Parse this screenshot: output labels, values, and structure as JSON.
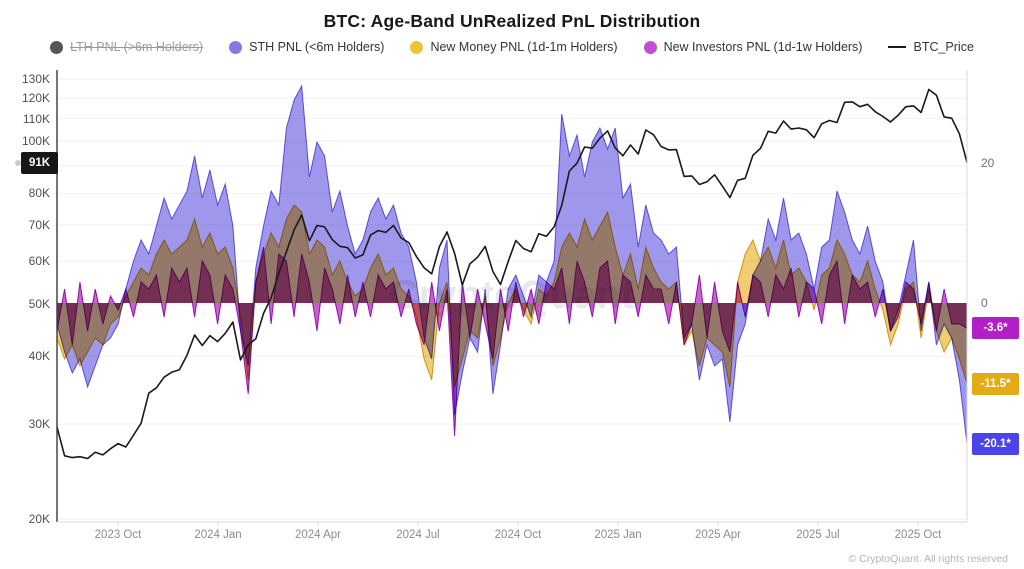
{
  "title": "BTC: Age-Band UnRealized PnL Distribution",
  "watermark": "CryptoQuant",
  "footer": "© CryptoQuant. All rights reserved",
  "legend": {
    "items": [
      {
        "label": "LTH PNL (>6m Holders)",
        "color": "#55555e",
        "type": "dot",
        "disabled": true
      },
      {
        "label": "STH PNL (<6m Holders)",
        "color": "#837ae6",
        "type": "dot",
        "disabled": false
      },
      {
        "label": "New Money PNL (1d-1m Holders)",
        "color": "#eac43e",
        "type": "dot",
        "disabled": false
      },
      {
        "label": "New Investors PNL (1d-1w Holders)",
        "color": "#c14fd6",
        "type": "dot",
        "disabled": false
      },
      {
        "label": "BTC_Price",
        "color": "#1a1a1e",
        "type": "line",
        "disabled": false
      }
    ]
  },
  "badges": {
    "price_last": {
      "text": "91K",
      "bg": "#17171b",
      "value": 91
    },
    "series_last": [
      {
        "text": "-3.6*",
        "bg": "#b21fc9",
        "value": -3.6
      },
      {
        "text": "-11.5*",
        "bg": "#e3ab16",
        "value": -11.5
      },
      {
        "text": "-20.1*",
        "bg": "#4b44e8",
        "value": -20.1
      }
    ]
  },
  "chart_data": {
    "type": "area",
    "title": "BTC: Age-Band UnRealized PnL Distribution",
    "x_range": {
      "start": "2023 Aug",
      "end": "2025 Nov",
      "interval": "weekly"
    },
    "x_tick_labels": [
      "2023 Oct",
      "2024 Jan",
      "2024 Apr",
      "2024 Jul",
      "2024 Oct",
      "2025 Jan",
      "2025 Apr",
      "2025 Jul",
      "2025 Oct"
    ],
    "left_axis": {
      "scale": "log",
      "unit": "USD thousands",
      "tick_values": [
        130,
        120,
        110,
        100,
        90,
        80,
        70,
        60,
        50,
        40,
        30,
        20
      ],
      "tick_labels_visible": [
        "130K",
        "120K",
        "110K",
        "100K",
        "80K",
        "70K",
        "60K",
        "50K",
        "40K",
        "30K",
        "20K"
      ]
    },
    "right_axis": {
      "tick_values": [
        20,
        0
      ]
    },
    "grid": "horizontal",
    "legend_position": "top",
    "series": [
      {
        "name": "STH PNL (<6m Holders)",
        "fill": "#8a80e8",
        "stroke": "#6e62dd",
        "last_value": -20.1,
        "values": [
          -3,
          -7,
          -10,
          -8,
          -12,
          -9,
          -6,
          -5,
          -3,
          2,
          6,
          9,
          7,
          11,
          15,
          12,
          14,
          16,
          21,
          15,
          19,
          14,
          17,
          11,
          -4,
          -9,
          5,
          11,
          16,
          14,
          25,
          29,
          31,
          18,
          23,
          21,
          13,
          16,
          11,
          7,
          9,
          13,
          15,
          12,
          14,
          10,
          8,
          3,
          -5,
          -8,
          5,
          9,
          -16,
          -10,
          -5,
          -7,
          2,
          -13,
          -6,
          2,
          4,
          1,
          -2,
          4,
          3,
          6,
          27,
          21,
          24,
          18,
          23,
          25,
          22,
          25,
          15,
          17,
          8,
          14,
          10,
          9,
          7,
          8,
          -5,
          -3,
          -11,
          -6,
          -9,
          -8,
          -17,
          -6,
          -3,
          4,
          6,
          12,
          9,
          15,
          9,
          10,
          7,
          2,
          8,
          9,
          16,
          13,
          9,
          7,
          11,
          6,
          3,
          -4,
          -1,
          4,
          9,
          -4,
          3,
          -6,
          -3,
          -5,
          -11,
          -20.1
        ]
      },
      {
        "name": "New Money PNL (1d-1m Holders)",
        "fill": "#eac254",
        "stroke": "#d9a41e",
        "last_value": -11.5,
        "values": [
          -5,
          -8,
          -6,
          -9,
          -7,
          -5,
          -6,
          -3,
          -2,
          1,
          3,
          5,
          4,
          7,
          9,
          7,
          8,
          9,
          12,
          8,
          10,
          7,
          8,
          5,
          -2,
          -11,
          3,
          7,
          10,
          8,
          12,
          14,
          13,
          7,
          9,
          8,
          4,
          6,
          3,
          1,
          2,
          5,
          7,
          4,
          5,
          2,
          1,
          -2,
          -8,
          -11,
          0,
          3,
          -12,
          -8,
          -4,
          -5,
          1,
          -9,
          -5,
          0,
          2,
          -1,
          -3,
          2,
          1,
          3,
          8,
          10,
          8,
          12,
          9,
          11,
          13,
          8,
          4,
          7,
          2,
          8,
          5,
          3,
          2,
          3,
          -6,
          -4,
          -9,
          -5,
          -6,
          -7,
          -12,
          3,
          7,
          9,
          6,
          8,
          5,
          9,
          4,
          5,
          3,
          -1,
          4,
          5,
          9,
          7,
          4,
          3,
          6,
          2,
          -1,
          -6,
          -3,
          2,
          3,
          -5,
          2,
          -4,
          -7,
          -5,
          -8,
          -11.5
        ]
      },
      {
        "name": "New Investors PNL (1d-1w Holders)",
        "fill": "#bb3fc0",
        "stroke": "#a21cc4",
        "last_value": -3.6,
        "values": [
          -4,
          2,
          -6,
          3,
          -4,
          2,
          -3,
          1,
          -1,
          2,
          -2,
          3,
          2,
          4,
          -2,
          5,
          3,
          5,
          -2,
          6,
          4,
          -3,
          4,
          2,
          -4,
          -13,
          3,
          8,
          -3,
          7,
          6,
          -2,
          7,
          3,
          -4,
          5,
          2,
          -3,
          4,
          -2,
          3,
          -2,
          4,
          2,
          3,
          -2,
          2,
          -3,
          -6,
          3,
          -4,
          2,
          -19,
          3,
          -5,
          2,
          -3,
          -8,
          2,
          -4,
          3,
          -2,
          2,
          -3,
          3,
          2,
          5,
          -3,
          6,
          3,
          -2,
          5,
          6,
          -3,
          4,
          3,
          -2,
          4,
          2,
          2,
          -3,
          3,
          -6,
          -3,
          4,
          -5,
          3,
          -4,
          -7,
          3,
          -2,
          4,
          3,
          -2,
          4,
          2,
          5,
          -2,
          3,
          2,
          -3,
          4,
          6,
          -3,
          4,
          2,
          3,
          -2,
          2,
          -4,
          -2,
          3,
          2,
          -3,
          3,
          -4,
          2,
          -3,
          -3,
          -3.6
        ]
      }
    ],
    "price_series": {
      "name": "BTC_Price",
      "color": "#1a1a1e",
      "axis": "left",
      "last_value": 91.3,
      "values": [
        29.6,
        26.2,
        26.0,
        26.1,
        25.9,
        26.6,
        26.3,
        27.0,
        27.6,
        27.2,
        28.6,
        30.1,
        34.2,
        35.0,
        36.6,
        37.4,
        37.8,
        40.2,
        43.8,
        41.9,
        43.7,
        42.6,
        44.1,
        46.3,
        39.4,
        42.0,
        43.1,
        48.0,
        51.3,
        57.0,
        62.4,
        68.5,
        73.0,
        65.4,
        69.8,
        69.4,
        65.7,
        63.9,
        63.5,
        60.8,
        61.6,
        67.0,
        68.3,
        67.8,
        69.8,
        66.2,
        64.9,
        61.2,
        58.3,
        56.8,
        63.8,
        67.9,
        62.0,
        54.2,
        59.3,
        61.0,
        63.9,
        57.4,
        54.3,
        59.9,
        65.5,
        63.3,
        62.4,
        67.4,
        66.7,
        69.4,
        76.0,
        88.0,
        91.0,
        97.5,
        97.0,
        101.2,
        104.4,
        97.1,
        93.9,
        98.3,
        94.6,
        104.8,
        102.7,
        97.7,
        96.3,
        96.4,
        86.0,
        86.2,
        83.1,
        84.1,
        86.6,
        82.6,
        78.6,
        84.6,
        85.3,
        94.1,
        96.9,
        104.2,
        103.4,
        108.9,
        105.2,
        105.7,
        104.9,
        101.4,
        107.6,
        109.1,
        108.2,
        117.9,
        118.1,
        115.7,
        116.9,
        113.3,
        111.0,
        108.4,
        111.6,
        115.7,
        116.1,
        112.9,
        124.5,
        121.5,
        110.8,
        110.2,
        103.1,
        91.3
      ]
    }
  }
}
